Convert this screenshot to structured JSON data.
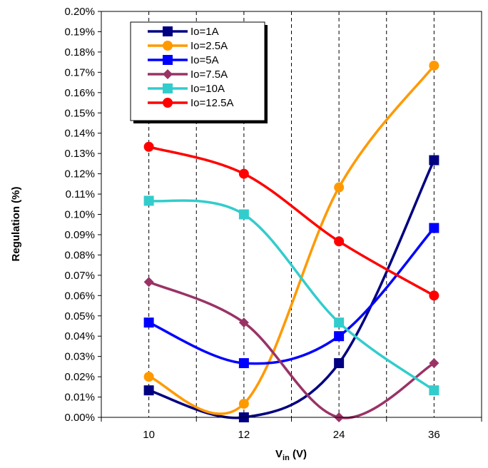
{
  "chart_data": {
    "type": "line",
    "categories": [
      "10",
      "12",
      "24",
      "36"
    ],
    "ylabel": "Regulation (%)",
    "xlabel": {
      "main": "V",
      "sub": "in",
      "unit": " (V)"
    },
    "ylim": [
      0,
      0.2
    ],
    "ytick_step": 0.01,
    "ytick_labels": [
      "0.00%",
      "0.01%",
      "0.02%",
      "0.03%",
      "0.04%",
      "0.05%",
      "0.06%",
      "0.07%",
      "0.08%",
      "0.09%",
      "0.10%",
      "0.11%",
      "0.12%",
      "0.13%",
      "0.14%",
      "0.15%",
      "0.16%",
      "0.17%",
      "0.18%",
      "0.19%",
      "0.20%"
    ],
    "grid": "vertical dashed",
    "legend_position": "top-left",
    "series": [
      {
        "name": "Io=1A",
        "color": "#000080",
        "marker": "square",
        "values": [
          0.0133,
          0.0,
          0.0267,
          0.1267
        ]
      },
      {
        "name": "Io=2.5A",
        "color": "#ff9900",
        "marker": "circle",
        "values": [
          0.02,
          0.0067,
          0.1133,
          0.1733
        ]
      },
      {
        "name": "Io=5A",
        "color": "#0000ff",
        "marker": "square",
        "values": [
          0.0467,
          0.0267,
          0.04,
          0.0933
        ]
      },
      {
        "name": "Io=7.5A",
        "color": "#993366",
        "marker": "diamond",
        "values": [
          0.0667,
          0.0467,
          0.0,
          0.0267
        ]
      },
      {
        "name": "Io=10A",
        "color": "#33cccc",
        "marker": "square",
        "values": [
          0.1067,
          0.1,
          0.0467,
          0.0133
        ]
      },
      {
        "name": "Io=12.5A",
        "color": "#ff0000",
        "marker": "circle",
        "values": [
          0.1333,
          0.12,
          0.0867,
          0.06
        ]
      }
    ]
  }
}
